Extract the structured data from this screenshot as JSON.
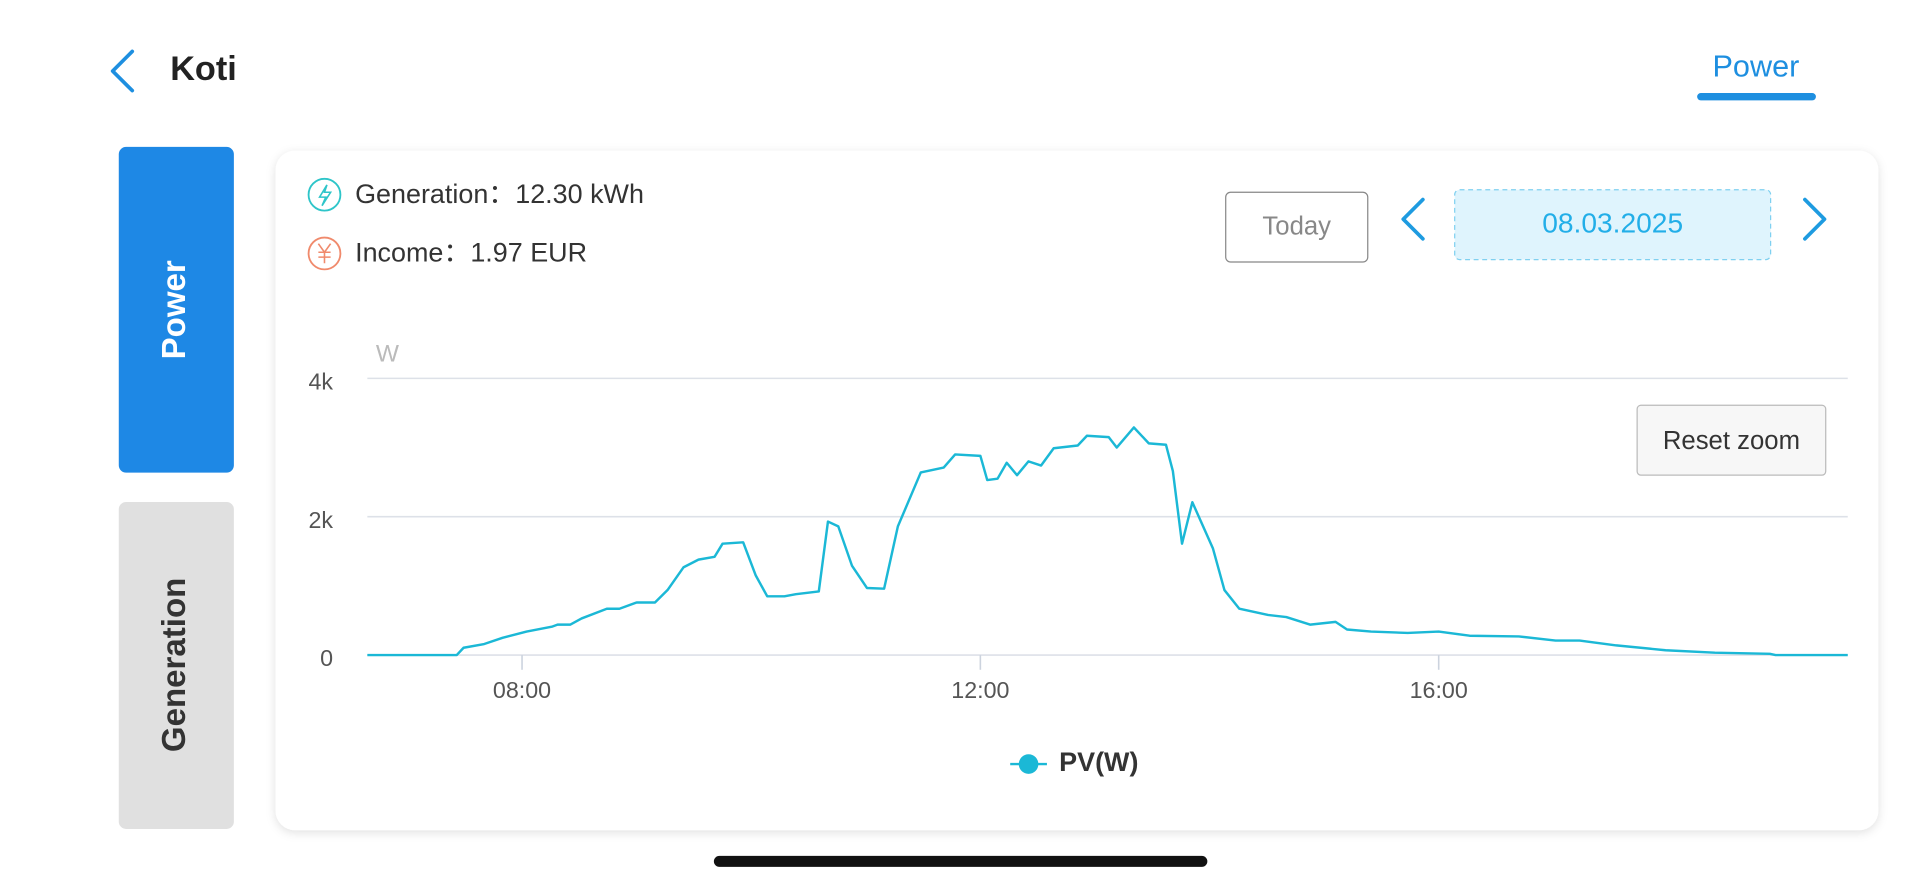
{
  "header": {
    "title": "Koti",
    "tab": "Power"
  },
  "side_tabs": [
    "Power",
    "Generation"
  ],
  "summary": {
    "generation": {
      "label": "Generation：",
      "value": "12.30 kWh"
    },
    "income": {
      "label": "Income：",
      "value": "1.97 EUR"
    }
  },
  "controls": {
    "today": "Today",
    "date": "08.03.2025",
    "reset_zoom": "Reset zoom"
  },
  "chart_data": {
    "type": "line",
    "y_unit": "W",
    "x": [
      6.65,
      7.43,
      7.49,
      7.67,
      7.83,
      8.04,
      8.26,
      8.31,
      8.42,
      8.52,
      8.74,
      8.85,
      9.0,
      9.16,
      9.27,
      9.41,
      9.54,
      9.68,
      9.75,
      9.93,
      10.04,
      10.14,
      10.29,
      10.39,
      10.59,
      10.67,
      10.76,
      10.88,
      11.01,
      11.16,
      11.28,
      11.48,
      11.68,
      11.78,
      12.0,
      12.06,
      12.15,
      12.23,
      12.32,
      12.42,
      12.53,
      12.64,
      12.85,
      12.93,
      13.12,
      13.19,
      13.34,
      13.47,
      13.62,
      13.68,
      13.76,
      13.85,
      14.03,
      14.13,
      14.26,
      14.4,
      14.51,
      14.67,
      14.88,
      15.1,
      15.2,
      15.41,
      15.73,
      16.0,
      16.27,
      16.7,
      17.02,
      17.23,
      17.55,
      17.98,
      18.41,
      18.89,
      18.94,
      19.57
    ],
    "series": [
      {
        "name": "PV(W)",
        "color": "#1bb8d6",
        "values": [
          0,
          0,
          106,
          160,
          250,
          340,
          410,
          440,
          440,
          530,
          670,
          670,
          760,
          760,
          940,
          1270,
          1380,
          1420,
          1610,
          1630,
          1150,
          850,
          850,
          880,
          920,
          1930,
          1860,
          1290,
          970,
          960,
          1860,
          2640,
          2710,
          2900,
          2880,
          2530,
          2550,
          2780,
          2600,
          2800,
          2740,
          2990,
          3030,
          3170,
          3150,
          3000,
          3290,
          3060,
          3040,
          2660,
          1610,
          2210,
          1540,
          940,
          670,
          620,
          580,
          550,
          440,
          480,
          370,
          340,
          320,
          340,
          280,
          270,
          210,
          210,
          140,
          70,
          35,
          18,
          0,
          0
        ]
      }
    ],
    "xlim": [
      6.65,
      19.57
    ],
    "xticks": [
      {
        "value": 8,
        "label": "08:00"
      },
      {
        "value": 12,
        "label": "12:00"
      },
      {
        "value": 16,
        "label": "16:00"
      }
    ],
    "ylim": [
      0,
      4000
    ],
    "yticks": [
      0,
      {
        "value": 2000,
        "label": "2k"
      },
      {
        "value": 4000,
        "label": "4k"
      }
    ],
    "grid": true
  }
}
